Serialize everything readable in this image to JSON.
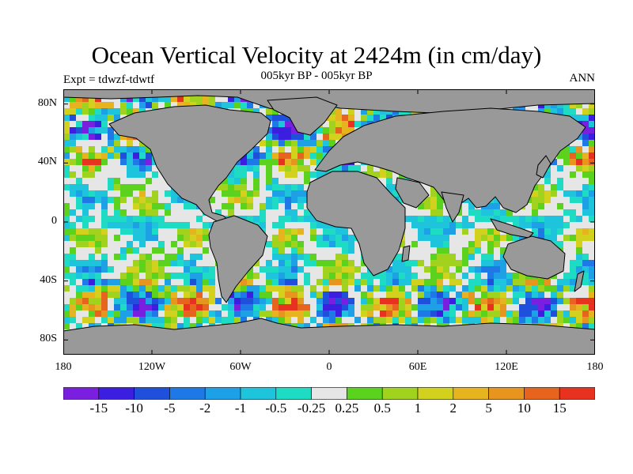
{
  "title": "Ocean Vertical Velocity at 2424m (in cm/day)",
  "subtitle": "005kyr BP - 005kyr BP",
  "left_string": "Expt = tdwzf-tdwtf",
  "right_string": "ANN",
  "lat_labels": [
    "80N",
    "40N",
    "0",
    "40S",
    "80S"
  ],
  "lon_labels": [
    "180",
    "120W",
    "60W",
    "0",
    "60E",
    "120E",
    "180"
  ],
  "colorbar": {
    "labels": [
      "-15",
      "-10",
      "-5",
      "-2",
      "-1",
      "-0.5",
      "-0.25",
      "0.25",
      "0.5",
      "1",
      "2",
      "5",
      "10",
      "15"
    ],
    "colors": [
      "#7a1ee0",
      "#3b1ee0",
      "#1e50dc",
      "#1e78e6",
      "#1ea0e6",
      "#1ec3dc",
      "#1edcc3",
      "#e6e6e6",
      "#5ad21e",
      "#a0d21e",
      "#d2d21e",
      "#e6b41e",
      "#e6961e",
      "#e6641e",
      "#e6321e"
    ]
  },
  "map": {
    "land_color": "#999999",
    "background_color": "#e6e6e6",
    "projection": "cylindrical-equidistant"
  }
}
